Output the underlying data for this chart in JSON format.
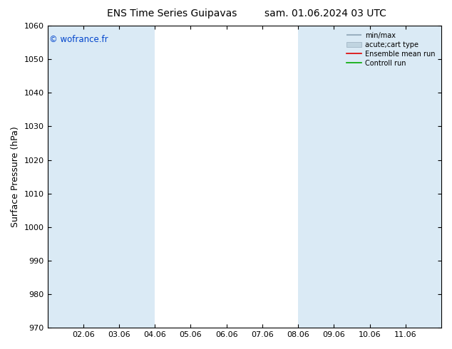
{
  "title_left": "ENS Time Series Guipavas",
  "title_right": "sam. 01.06.2024 03 UTC",
  "ylabel": "Surface Pressure (hPa)",
  "ylim": [
    970,
    1060
  ],
  "yticks": [
    970,
    980,
    990,
    1000,
    1010,
    1020,
    1030,
    1040,
    1050,
    1060
  ],
  "xtick_labels": [
    "02.06",
    "03.06",
    "04.06",
    "05.06",
    "06.06",
    "07.06",
    "08.06",
    "09.06",
    "10.06",
    "11.06"
  ],
  "xtick_positions": [
    1,
    2,
    3,
    4,
    5,
    6,
    7,
    8,
    9,
    10
  ],
  "xlim": [
    0,
    11
  ],
  "copyright": "© wofrance.fr",
  "legend_entries": [
    "min/max",
    "acute;cart type",
    "Ensemble mean run",
    "Controll run"
  ],
  "shaded_bands": [
    {
      "x_start": 0,
      "x_end": 2,
      "color": "#ddeef8"
    },
    {
      "x_start": 2,
      "x_end": 3,
      "color": "#ddeef8"
    },
    {
      "x_start": 7,
      "x_end": 8,
      "color": "#ddeef8"
    },
    {
      "x_start": 8,
      "x_end": 9,
      "color": "#ddeef8"
    },
    {
      "x_start": 9,
      "x_end": 10,
      "color": "#ddeef8"
    },
    {
      "x_start": 10,
      "x_end": 11,
      "color": "#ddeef8"
    }
  ],
  "background_color": "#ffffff",
  "plot_bg_color": "#ffffff",
  "band_color": "#daeaf5",
  "minmax_color": "#9ab0c0",
  "acute_color": "#c0d4e0",
  "ensemble_color": "#dd0000",
  "control_color": "#00aa00"
}
